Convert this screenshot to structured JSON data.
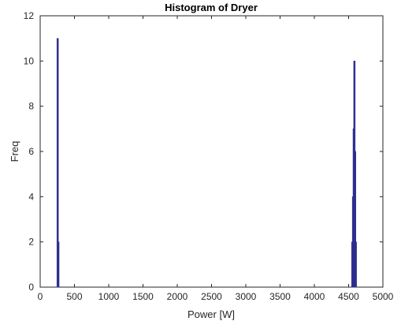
{
  "chart_data": {
    "type": "bar",
    "title": "Histogram of Dryer",
    "xlabel": "Power [W]",
    "ylabel": "Freq",
    "xlim": [
      0,
      5000
    ],
    "ylim": [
      0,
      12
    ],
    "xticks": [
      0,
      500,
      1000,
      1500,
      2000,
      2500,
      3000,
      3500,
      4000,
      4500,
      5000
    ],
    "yticks": [
      0,
      2,
      4,
      6,
      8,
      10,
      12
    ],
    "bar_color": "#2e2e8f",
    "bins": [
      {
        "x": 255,
        "value": 11
      },
      {
        "x": 265,
        "value": 2
      },
      {
        "x": 4555,
        "value": 2
      },
      {
        "x": 4565,
        "value": 4
      },
      {
        "x": 4575,
        "value": 7
      },
      {
        "x": 4585,
        "value": 10
      },
      {
        "x": 4595,
        "value": 6
      },
      {
        "x": 4605,
        "value": 2
      }
    ]
  }
}
